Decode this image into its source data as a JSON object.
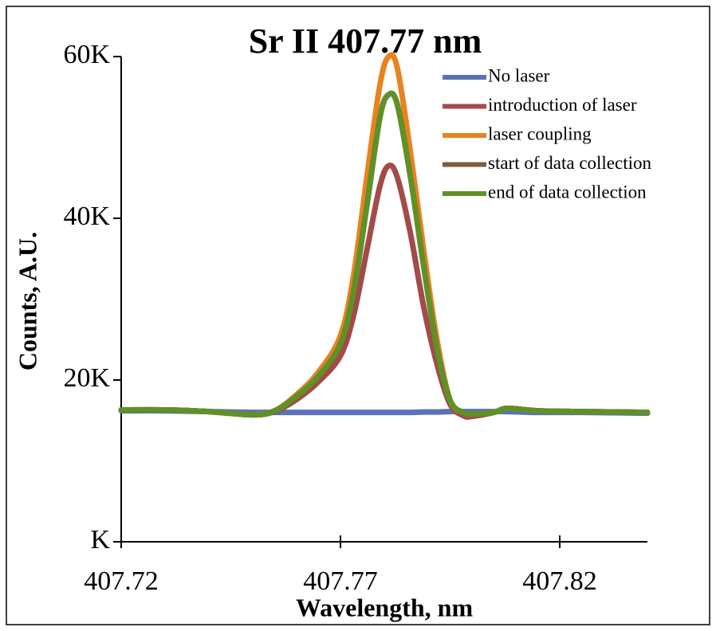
{
  "chart_data": {
    "type": "line",
    "title": "Sr II 407.77 nm",
    "x_label": "Wavelength, nm",
    "y_label": "Counts, A.U.",
    "xlim": [
      407.72,
      407.84
    ],
    "xticks": [
      407.72,
      407.77,
      407.82
    ],
    "ylim": [
      0,
      60000
    ],
    "yticks": [
      {
        "value": 0,
        "label": "K"
      },
      {
        "value": 20000,
        "label": "20K"
      },
      {
        "value": 40000,
        "label": "40K"
      },
      {
        "value": 60000,
        "label": "60K"
      }
    ],
    "x": [
      407.72,
      407.73,
      407.74,
      407.75,
      407.755,
      407.76,
      407.765,
      407.77,
      407.773,
      407.776,
      407.779,
      407.781,
      407.783,
      407.786,
      407.789,
      407.792,
      407.795,
      407.798,
      407.8,
      407.805,
      407.808,
      407.815,
      407.825,
      407.84
    ],
    "series": [
      {
        "name": "No laser",
        "color": "#5b72b8",
        "values": [
          16200,
          16200,
          16100,
          16000,
          16000,
          16000,
          16000,
          16000,
          16000,
          16000,
          16000,
          16000,
          16000,
          16000,
          16050,
          16050,
          16100,
          16100,
          16100,
          16100,
          16100,
          16000,
          16000,
          15900
        ]
      },
      {
        "name": "introduction of laser",
        "color": "#a24b49",
        "values": [
          16300,
          16300,
          16100,
          15700,
          16100,
          17600,
          19800,
          23000,
          28000,
          36000,
          44000,
          46500,
          45000,
          38000,
          29000,
          22000,
          17000,
          15600,
          15500,
          16000,
          16500,
          16200,
          16100,
          16000
        ]
      },
      {
        "name": "laser coupling",
        "color": "#e8831f",
        "values": [
          16300,
          16300,
          16100,
          15700,
          16200,
          18200,
          21000,
          25500,
          33000,
          45000,
          56500,
          60000,
          58500,
          48000,
          36000,
          25000,
          17500,
          16000,
          15800,
          16000,
          16500,
          16200,
          16100,
          16000
        ]
      },
      {
        "name": "start of data collection",
        "color": "#7e5d3d",
        "values": [
          16300,
          16300,
          16100,
          15700,
          16200,
          18000,
          20500,
          24500,
          31000,
          41500,
          52500,
          55300,
          54000,
          45000,
          34000,
          24000,
          17500,
          16000,
          15800,
          16000,
          16500,
          16200,
          16100,
          16000
        ]
      },
      {
        "name": "end of data collection",
        "color": "#5f9127",
        "values": [
          16300,
          16300,
          16100,
          15700,
          16200,
          18000,
          20500,
          24500,
          31000,
          41500,
          52500,
          55300,
          54000,
          45000,
          34000,
          24000,
          17500,
          16000,
          15800,
          16000,
          16500,
          16200,
          16100,
          16000
        ]
      }
    ]
  }
}
